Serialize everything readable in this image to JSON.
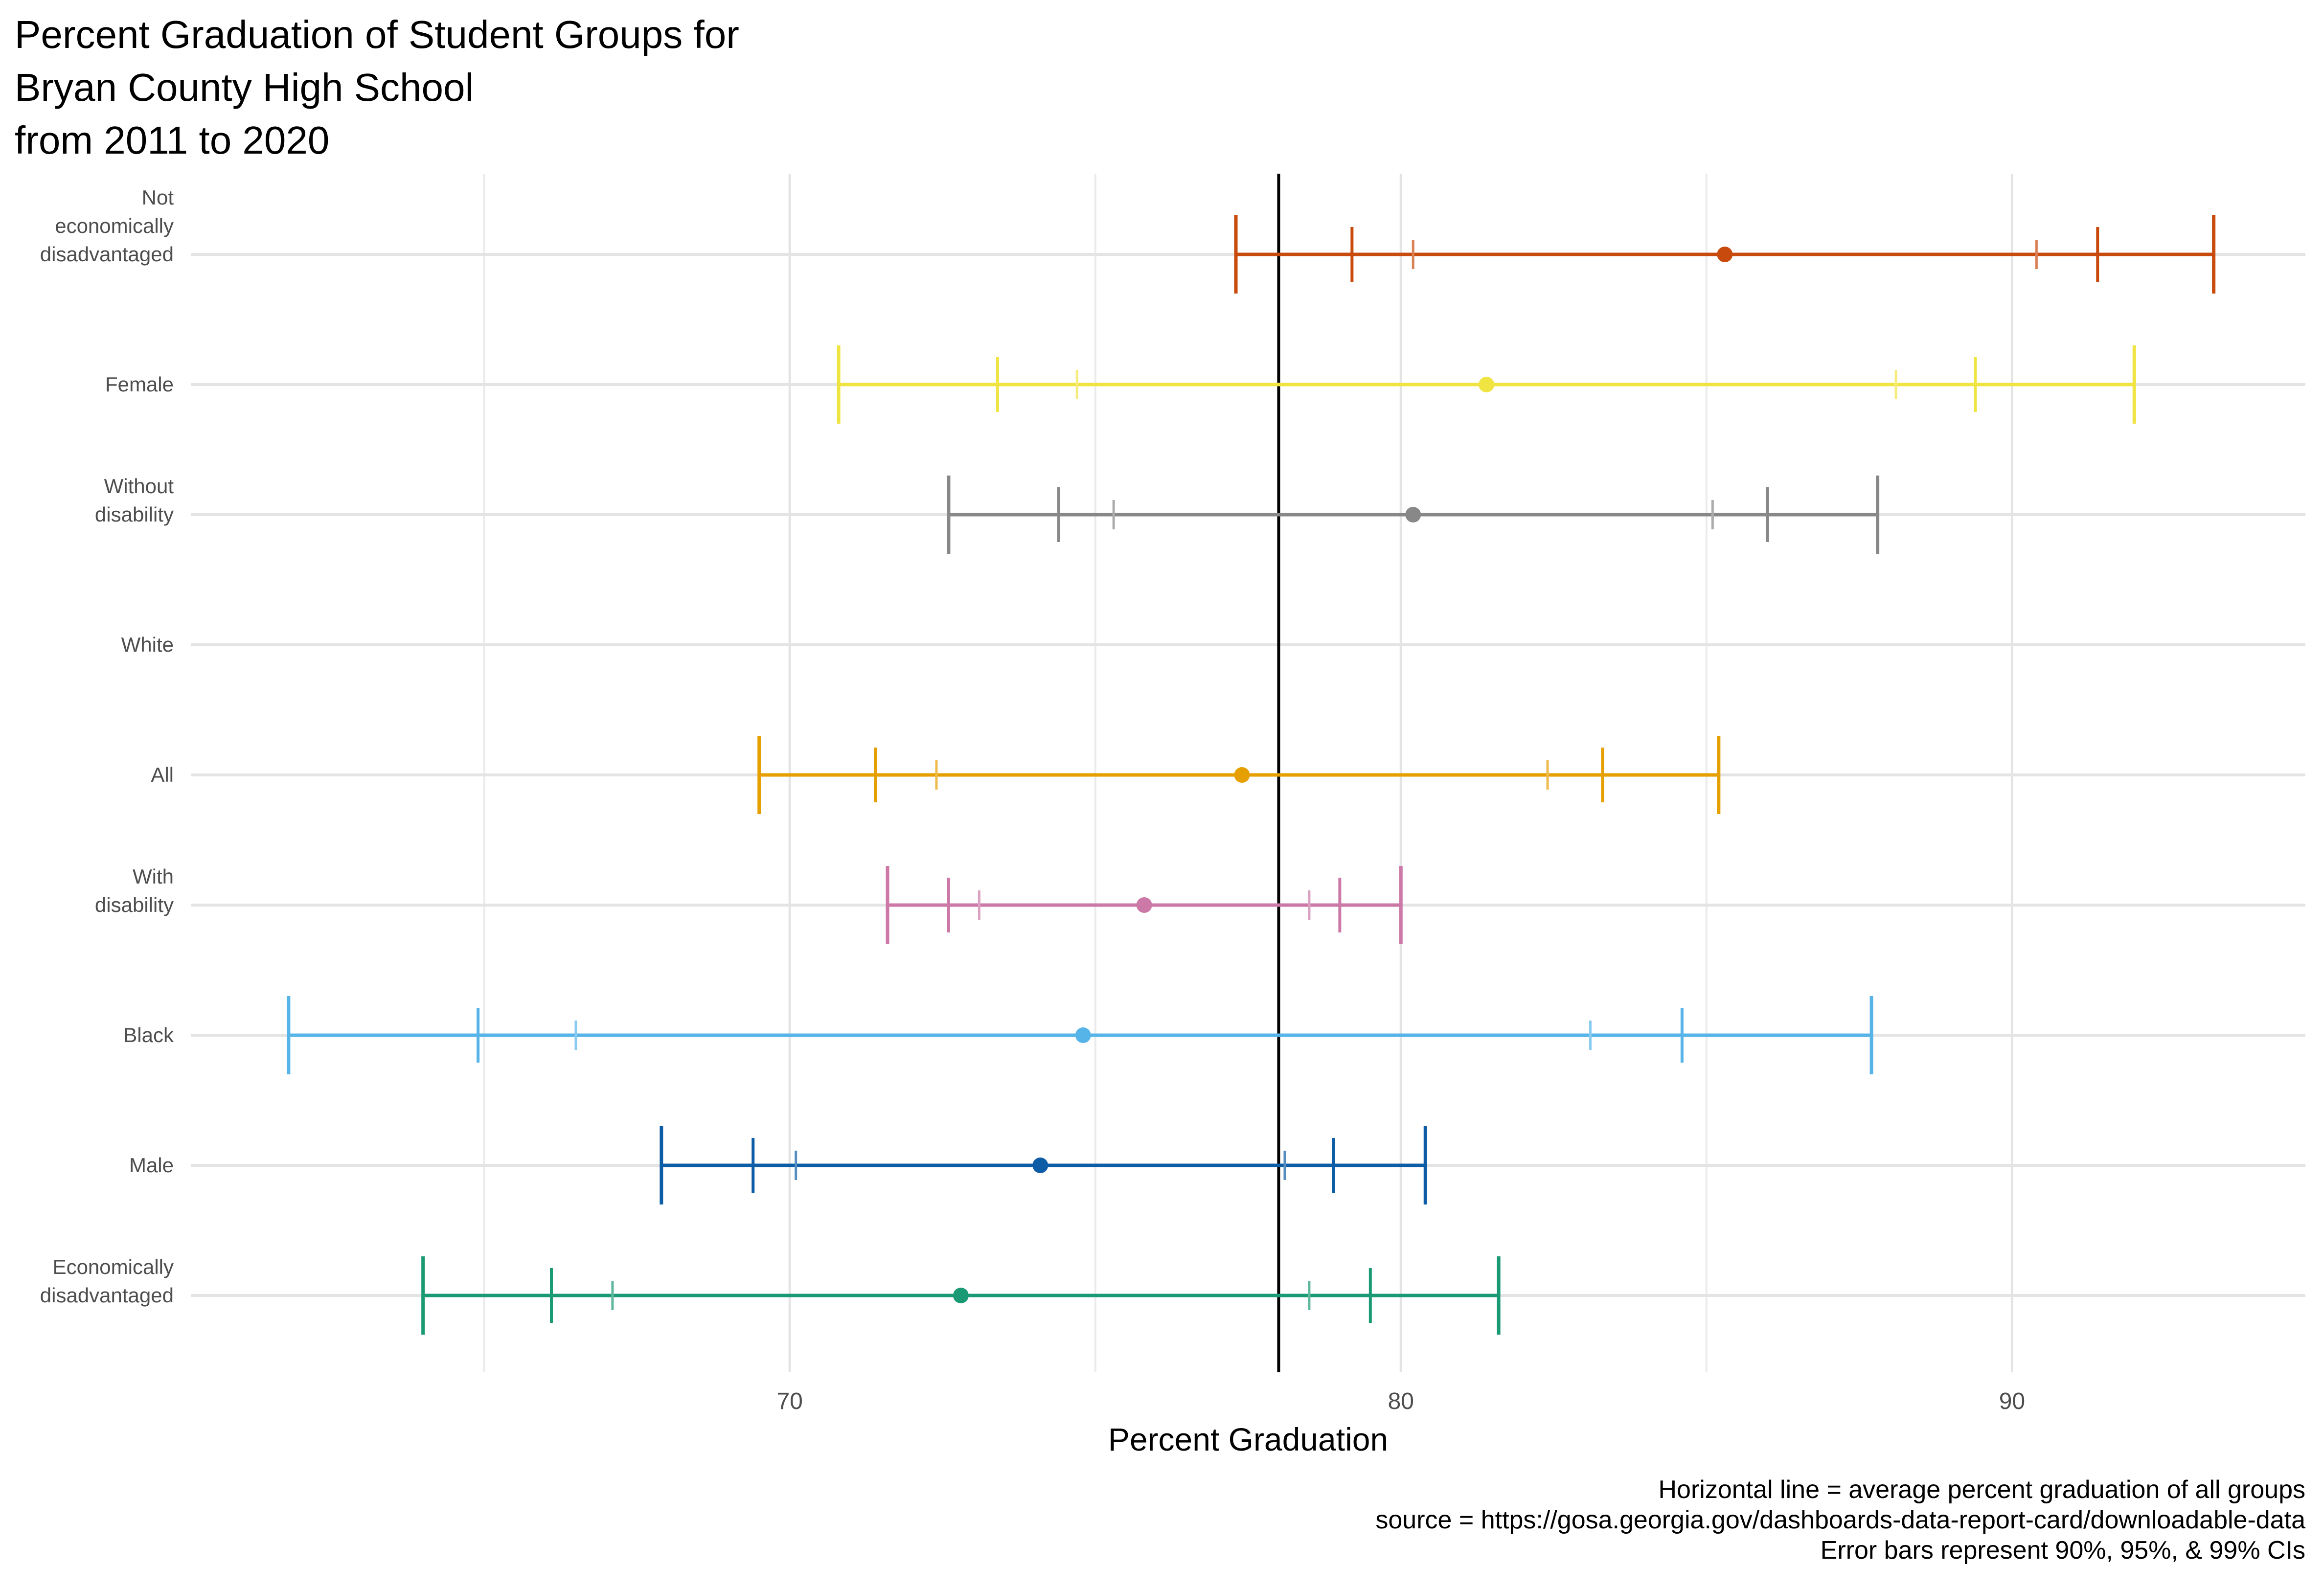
{
  "chart_data": {
    "type": "errorbar",
    "title": [
      "Percent Graduation of Student Groups for",
      "Bryan County High School",
      "from 2011 to 2020"
    ],
    "xlabel": "Percent Graduation",
    "ylabel": "",
    "xlim": [
      60.2,
      94.8
    ],
    "xticks": [
      70,
      80,
      90
    ],
    "grid": true,
    "reference_line": 78.0,
    "categories": [
      "Not economically disadvantaged",
      "Female",
      "Without disability",
      "White",
      "All",
      "With disability",
      "Black",
      "Male",
      "Economically disadvantaged"
    ],
    "series": [
      {
        "group": "Not economically disadvantaged",
        "label_lines": [
          "Not",
          "economically",
          "disadvantaged"
        ],
        "color": "#C84A0C",
        "estimate": 85.3,
        "ci90": [
          80.2,
          90.4
        ],
        "ci95": [
          79.2,
          91.4
        ],
        "ci99": [
          77.3,
          93.3
        ]
      },
      {
        "group": "Female",
        "label_lines": [
          "Female"
        ],
        "color": "#F0E442",
        "estimate": 81.4,
        "ci90": [
          74.7,
          88.1
        ],
        "ci95": [
          73.4,
          89.4
        ],
        "ci99": [
          70.8,
          92.0
        ]
      },
      {
        "group": "Without disability",
        "label_lines": [
          "Without",
          "disability"
        ],
        "color": "#888888",
        "estimate": 80.2,
        "ci90": [
          75.3,
          85.1
        ],
        "ci95": [
          74.4,
          86.0
        ],
        "ci99": [
          72.6,
          87.8
        ]
      },
      {
        "group": "White",
        "label_lines": [
          "White"
        ],
        "color": "#999999",
        "estimate": null,
        "ci90": null,
        "ci95": null,
        "ci99": null
      },
      {
        "group": "All",
        "label_lines": [
          "All"
        ],
        "color": "#E69F00",
        "estimate": 77.4,
        "ci90": [
          72.4,
          82.4
        ],
        "ci95": [
          71.4,
          83.3
        ],
        "ci99": [
          69.5,
          85.2
        ]
      },
      {
        "group": "With disability",
        "label_lines": [
          "With",
          "disability"
        ],
        "color": "#CC79A7",
        "estimate": 75.8,
        "ci90": [
          73.1,
          78.5
        ],
        "ci95": [
          72.6,
          79.0
        ],
        "ci99": [
          71.6,
          80.0
        ]
      },
      {
        "group": "Black",
        "label_lines": [
          "Black"
        ],
        "color": "#56B4E9",
        "estimate": 74.8,
        "ci90": [
          66.5,
          83.1
        ],
        "ci95": [
          64.9,
          84.6
        ],
        "ci99": [
          61.8,
          87.7
        ]
      },
      {
        "group": "Male",
        "label_lines": [
          "Male"
        ],
        "color": "#0D5CA6",
        "estimate": 74.1,
        "ci90": [
          70.1,
          78.1
        ],
        "ci95": [
          69.4,
          78.9
        ],
        "ci99": [
          67.9,
          80.4
        ]
      },
      {
        "group": "Economically disadvantaged",
        "label_lines": [
          "Economically",
          "disadvantaged"
        ],
        "color": "#1A9A74",
        "estimate": 72.8,
        "ci90": [
          67.1,
          78.5
        ],
        "ci95": [
          66.1,
          79.5
        ],
        "ci99": [
          64.0,
          81.6
        ]
      }
    ],
    "caption": [
      "Horizontal line = average percent graduation of all groups",
      "source = https://gosa.georgia.gov/dashboards-data-report-card/downloadable-data",
      "Error bars represent 90%, 95%, & 99% CIs"
    ]
  }
}
